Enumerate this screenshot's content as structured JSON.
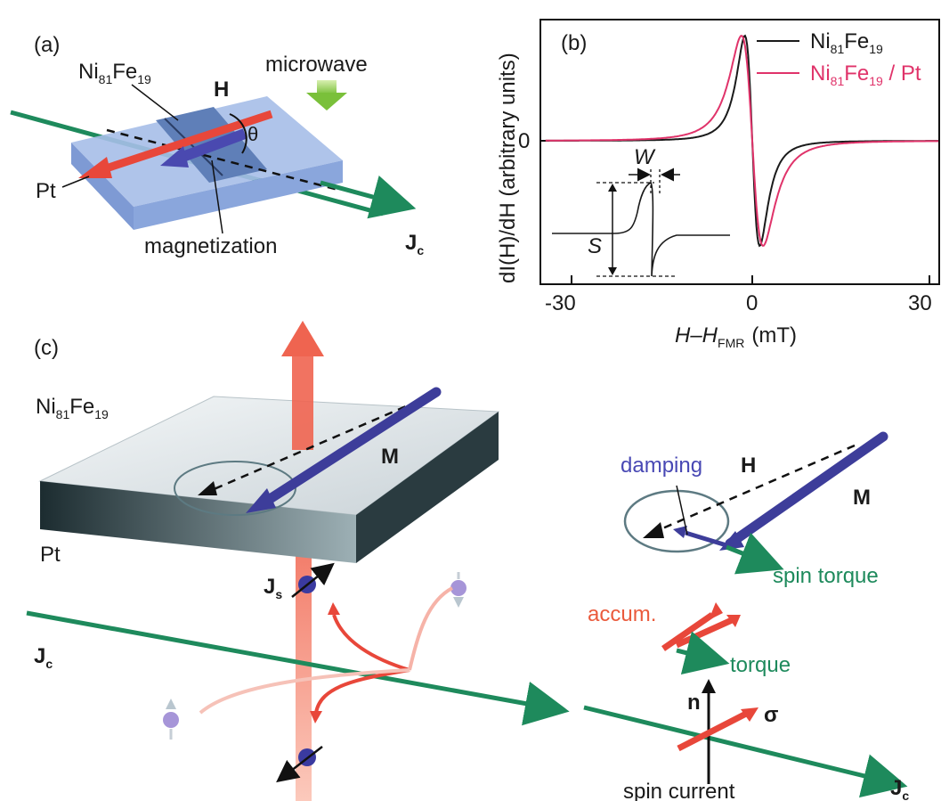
{
  "panel_a": {
    "label": "(a)",
    "ni_base": "Ni",
    "ni_sub1": "81",
    "fe": "Fe",
    "ni_sub2": "19",
    "h": "H",
    "theta": "θ",
    "microwave": "microwave",
    "pt": "Pt",
    "magnetization": "magnetization",
    "j": "J",
    "j_sub": "c"
  },
  "panel_b": {
    "label": "(b)",
    "ylabel": "dI(H)/dH (arbitrary units)",
    "xlabel_main": "H–H",
    "xlabel_sub": "FMR",
    "xlabel_unit": "(mT)",
    "y_tick_zero": "0",
    "x_ticks": [
      "-30",
      "0",
      "30"
    ],
    "w_label": "W",
    "s_label": "S",
    "legend": [
      {
        "ni": "Ni",
        "s1": "81",
        "fe": "Fe",
        "s2": "19",
        "suffix": "",
        "color": "#1a1a1a"
      },
      {
        "ni": "Ni",
        "s1": "81",
        "fe": "Fe",
        "s2": "19",
        "suffix": " / Pt",
        "color": "#e0336a"
      }
    ]
  },
  "chart_data": {
    "type": "line",
    "xlabel": "H–H_FMR (mT)",
    "ylabel": "dI(H)/dH (arbitrary units)",
    "xlim": [
      -35,
      35
    ],
    "x_ticks": [
      -30,
      0,
      30
    ],
    "y_ticks": [
      0
    ],
    "series": [
      {
        "name": "Ni81Fe19",
        "color": "#1a1a1a",
        "halfwidth": 3.8
      },
      {
        "name": "Ni81Fe19 / Pt",
        "color": "#e0336a",
        "halfwidth": 5.5
      }
    ]
  },
  "panel_c": {
    "label": "(c)",
    "ni_base": "Ni",
    "ni_sub1": "81",
    "fe": "Fe",
    "ni_sub2": "19",
    "m": "M",
    "pt": "Pt",
    "js": "J",
    "js_sub": "s",
    "jc": "J",
    "jc_sub": "c",
    "damping": "damping",
    "h": "H",
    "m2": "M",
    "spin_torque": "spin torque",
    "accum": "accum.",
    "torque": "torque",
    "n": "n",
    "sigma": "σ",
    "spin_current": "spin current",
    "jc2": "J",
    "jc2_sub": "c"
  }
}
